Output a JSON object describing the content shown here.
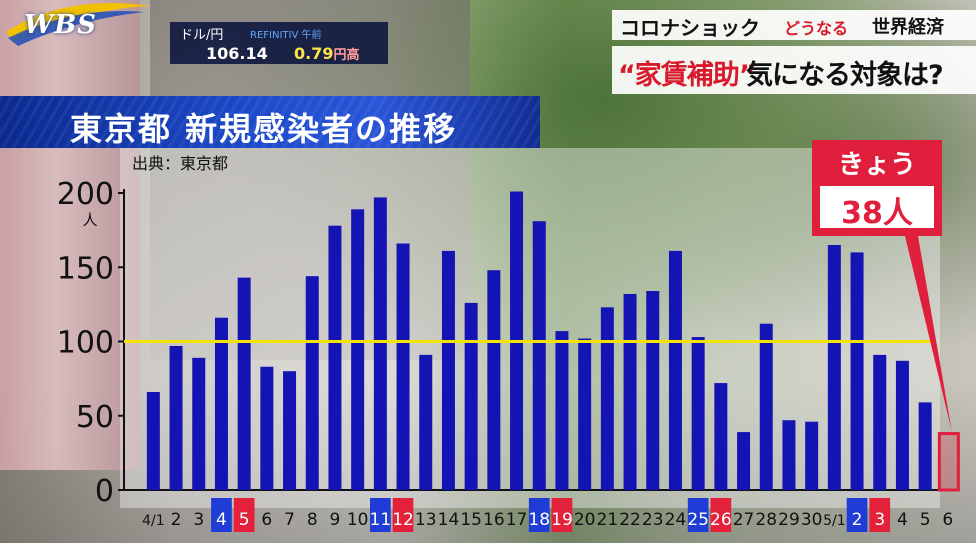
{
  "logo": "WBS",
  "ticker": {
    "label": "ドル/円",
    "subtitle": "REFINITIV 午前",
    "rate": "106.14",
    "change": "0.79",
    "change_suffix": "円高"
  },
  "topic": {
    "series_name": "コロナショック",
    "subtitle_red": "どうなる",
    "subtitle_black": "世界経済",
    "main_red": "“家賃補助”",
    "main_black": "気になる対象は?"
  },
  "title": "東京都 新規感染者の推移",
  "source": "出典：東京都",
  "today": {
    "label": "きょう",
    "value": "38人"
  },
  "colors": {
    "bar": "#1414b4",
    "bar_today": "#e01f3d",
    "weekend_sat": "#1f3cd6",
    "weekend_sun": "#e3213b",
    "reference_line": "#f2e400"
  },
  "chart_data": {
    "type": "bar",
    "title": "東京都 新規感染者の推移",
    "ylabel": "人",
    "ylim": [
      0,
      200
    ],
    "yticks": [
      0,
      50,
      100,
      150,
      200
    ],
    "reference_line": 100,
    "grid": false,
    "categories": [
      "4/1",
      "2",
      "3",
      "4",
      "5",
      "6",
      "7",
      "8",
      "9",
      "10",
      "11",
      "12",
      "13",
      "14",
      "15",
      "16",
      "17",
      "18",
      "19",
      "20",
      "21",
      "22",
      "23",
      "24",
      "25",
      "26",
      "27",
      "28",
      "29",
      "30",
      "5/1",
      "2",
      "3",
      "4",
      "5",
      "6"
    ],
    "values": [
      66,
      97,
      89,
      116,
      143,
      83,
      80,
      144,
      178,
      189,
      197,
      166,
      91,
      161,
      126,
      148,
      201,
      181,
      107,
      102,
      123,
      132,
      134,
      161,
      103,
      72,
      39,
      112,
      47,
      46,
      165,
      160,
      91,
      87,
      59,
      38
    ],
    "highlight": {
      "saturday": [
        "4",
        "11",
        "18",
        "25",
        "2"
      ],
      "sunday": [
        "5",
        "12",
        "19",
        "26",
        "3"
      ],
      "today": "6"
    }
  }
}
